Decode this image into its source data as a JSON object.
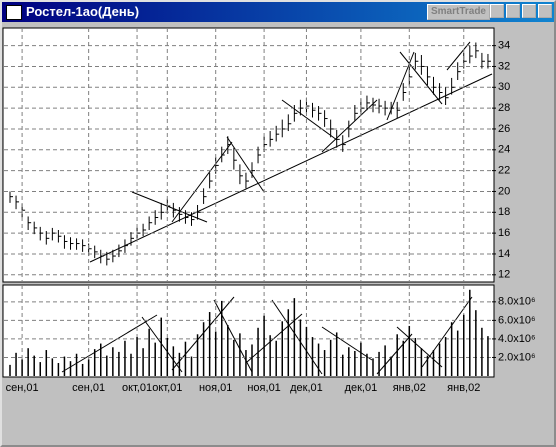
{
  "window": {
    "title": "Ростел-1ао(День)",
    "button": "SmartTrade"
  },
  "chart_data": [
    {
      "type": "ohlc",
      "color": "#000000",
      "grid": true,
      "ylim": [
        11.5,
        35.5
      ],
      "yticks": [
        12,
        14,
        16,
        18,
        20,
        22,
        24,
        26,
        28,
        30,
        32,
        34
      ],
      "high": [
        20,
        19.6,
        18.8,
        17.6,
        17.1,
        16.6,
        16.2,
        16.5,
        16.3,
        15.8,
        15.6,
        15.5,
        15.4,
        15,
        14.8,
        14.4,
        14.2,
        14.4,
        14.9,
        15.4,
        16.1,
        16.6,
        16.9,
        17.6,
        18.2,
        18.9,
        19.3,
        18.9,
        18.5,
        18.2,
        18,
        18.7,
        20.3,
        21.8,
        23.3,
        24.3,
        25.3,
        24.2,
        22.6,
        21.8,
        22.8,
        24.3,
        25.3,
        25.8,
        26.3,
        26.9,
        27.4,
        28.3,
        28.8,
        29,
        28.5,
        28.2,
        27.8,
        26.9,
        25.9,
        25.4,
        26.8,
        28.3,
        28.9,
        29.2,
        29,
        28.9,
        28.7,
        28.6,
        28.6,
        30.4,
        32,
        33.3,
        33.1,
        32,
        31,
        30.4,
        30,
        30.9,
        32.4,
        33.3,
        34,
        34.3,
        33.3,
        33.2
      ],
      "low": [
        18.9,
        18.3,
        17.5,
        16.3,
        15.9,
        15.3,
        14.9,
        15.3,
        15.1,
        14.5,
        14.4,
        14.4,
        14.2,
        13.8,
        13.6,
        13.1,
        12.9,
        13.2,
        13.7,
        14.1,
        14.8,
        15.3,
        15.7,
        16.3,
        16.8,
        17.3,
        17.9,
        17.5,
        17.1,
        16.9,
        16.7,
        17.3,
        18.8,
        20.3,
        21.7,
        22.8,
        23.6,
        22.1,
        20.7,
        20.3,
        21.3,
        22.7,
        23.8,
        24.3,
        24.8,
        25.2,
        25.8,
        26.7,
        27.3,
        27.5,
        27.1,
        26.8,
        26.2,
        25.2,
        24.2,
        23.8,
        25.2,
        26.8,
        27.3,
        27.8,
        27.6,
        27.5,
        27.3,
        27.4,
        27,
        28.7,
        30.2,
        31.7,
        31.2,
        30.2,
        29.3,
        28.8,
        28.3,
        29.3,
        30.7,
        31.8,
        32.3,
        32.8,
        31.8,
        31.8
      ],
      "close": [
        19.5,
        19,
        18.2,
        17,
        16.5,
        16,
        15.5,
        16,
        15.7,
        15.2,
        15,
        15,
        14.8,
        14.5,
        14.2,
        13.8,
        13.5,
        13.8,
        14.3,
        14.8,
        15.5,
        16,
        16.3,
        17,
        17.5,
        18,
        18.6,
        18.2,
        17.8,
        17.5,
        17.3,
        18,
        19.5,
        21,
        22.5,
        23.5,
        24.5,
        23,
        21.5,
        21,
        22,
        23.5,
        24.5,
        25,
        25.5,
        26,
        26.5,
        27.5,
        28,
        28.2,
        27.8,
        27.5,
        27,
        26,
        25,
        24.5,
        26,
        27.5,
        28,
        28.5,
        28.3,
        28.2,
        28,
        28,
        27.8,
        29.5,
        31,
        32.5,
        32,
        31,
        30,
        29.5,
        29,
        30,
        31.5,
        32.5,
        33,
        33.5,
        32.5,
        32.5
      ]
    },
    {
      "type": "bar",
      "color": "#000000",
      "grid": true,
      "ylim": [
        0,
        9600000.0
      ],
      "yticks": [
        {
          "value": 2000000.0,
          "label": "2.0x10⁶"
        },
        {
          "value": 4000000.0,
          "label": "4.0x10⁶"
        },
        {
          "value": 6000000.0,
          "label": "6.0x10⁶"
        },
        {
          "value": 8000000.0,
          "label": "8.0x10⁶"
        }
      ],
      "xticks": [
        {
          "value": 2,
          "label": "сен,01"
        },
        {
          "value": 13,
          "label": "сен,01"
        },
        {
          "value": 21,
          "label": "окт,01"
        },
        {
          "value": 26,
          "label": "окт,01"
        },
        {
          "value": 34,
          "label": "ноя,01"
        },
        {
          "value": 42,
          "label": "ноя,01"
        },
        {
          "value": 49,
          "label": "дек,01"
        },
        {
          "value": 58,
          "label": "дек,01"
        },
        {
          "value": 66,
          "label": "янв,02"
        },
        {
          "value": 75,
          "label": "янв,02"
        }
      ],
      "values": [
        1200000.0,
        2500000.0,
        1800000.0,
        3000000.0,
        2200000.0,
        1500000.0,
        2800000.0,
        1900000.0,
        1400000.0,
        2100000.0,
        1600000.0,
        2400000.0,
        1300000.0,
        1800000.0,
        2900000.0,
        3500000.0,
        2200000.0,
        3100000.0,
        2600000.0,
        3800000.0,
        2400000.0,
        4200000.0,
        3000000.0,
        5100000.0,
        3600000.0,
        6300000.0,
        4100000.0,
        3200000.0,
        2500000.0,
        3700000.0,
        2100000.0,
        4500000.0,
        5800000.0,
        6900000.0,
        4800000.0,
        8100000.0,
        5500000.0,
        3900000.0,
        4600000.0,
        2800000.0,
        3400000.0,
        5200000.0,
        6500000.0,
        4400000.0,
        3800000.0,
        5900000.0,
        7200000.0,
        8400000.0,
        6100000.0,
        5300000.0,
        4200000.0,
        3500000.0,
        2800000.0,
        3900000.0,
        4700000.0,
        2300000.0,
        3100000.0,
        2700000.0,
        3600000.0,
        2400000.0,
        1900000.0,
        2600000.0,
        3300000.0,
        2100000.0,
        4500000.0,
        3800000.0,
        5400000.0,
        4100000.0,
        3000000.0,
        2200000.0,
        2800000.0,
        3500000.0,
        4200000.0,
        5800000.0,
        4900000.0,
        6600000.0,
        9300000.0,
        7100000.0,
        5200000.0,
        4300000.0
      ]
    }
  ]
}
